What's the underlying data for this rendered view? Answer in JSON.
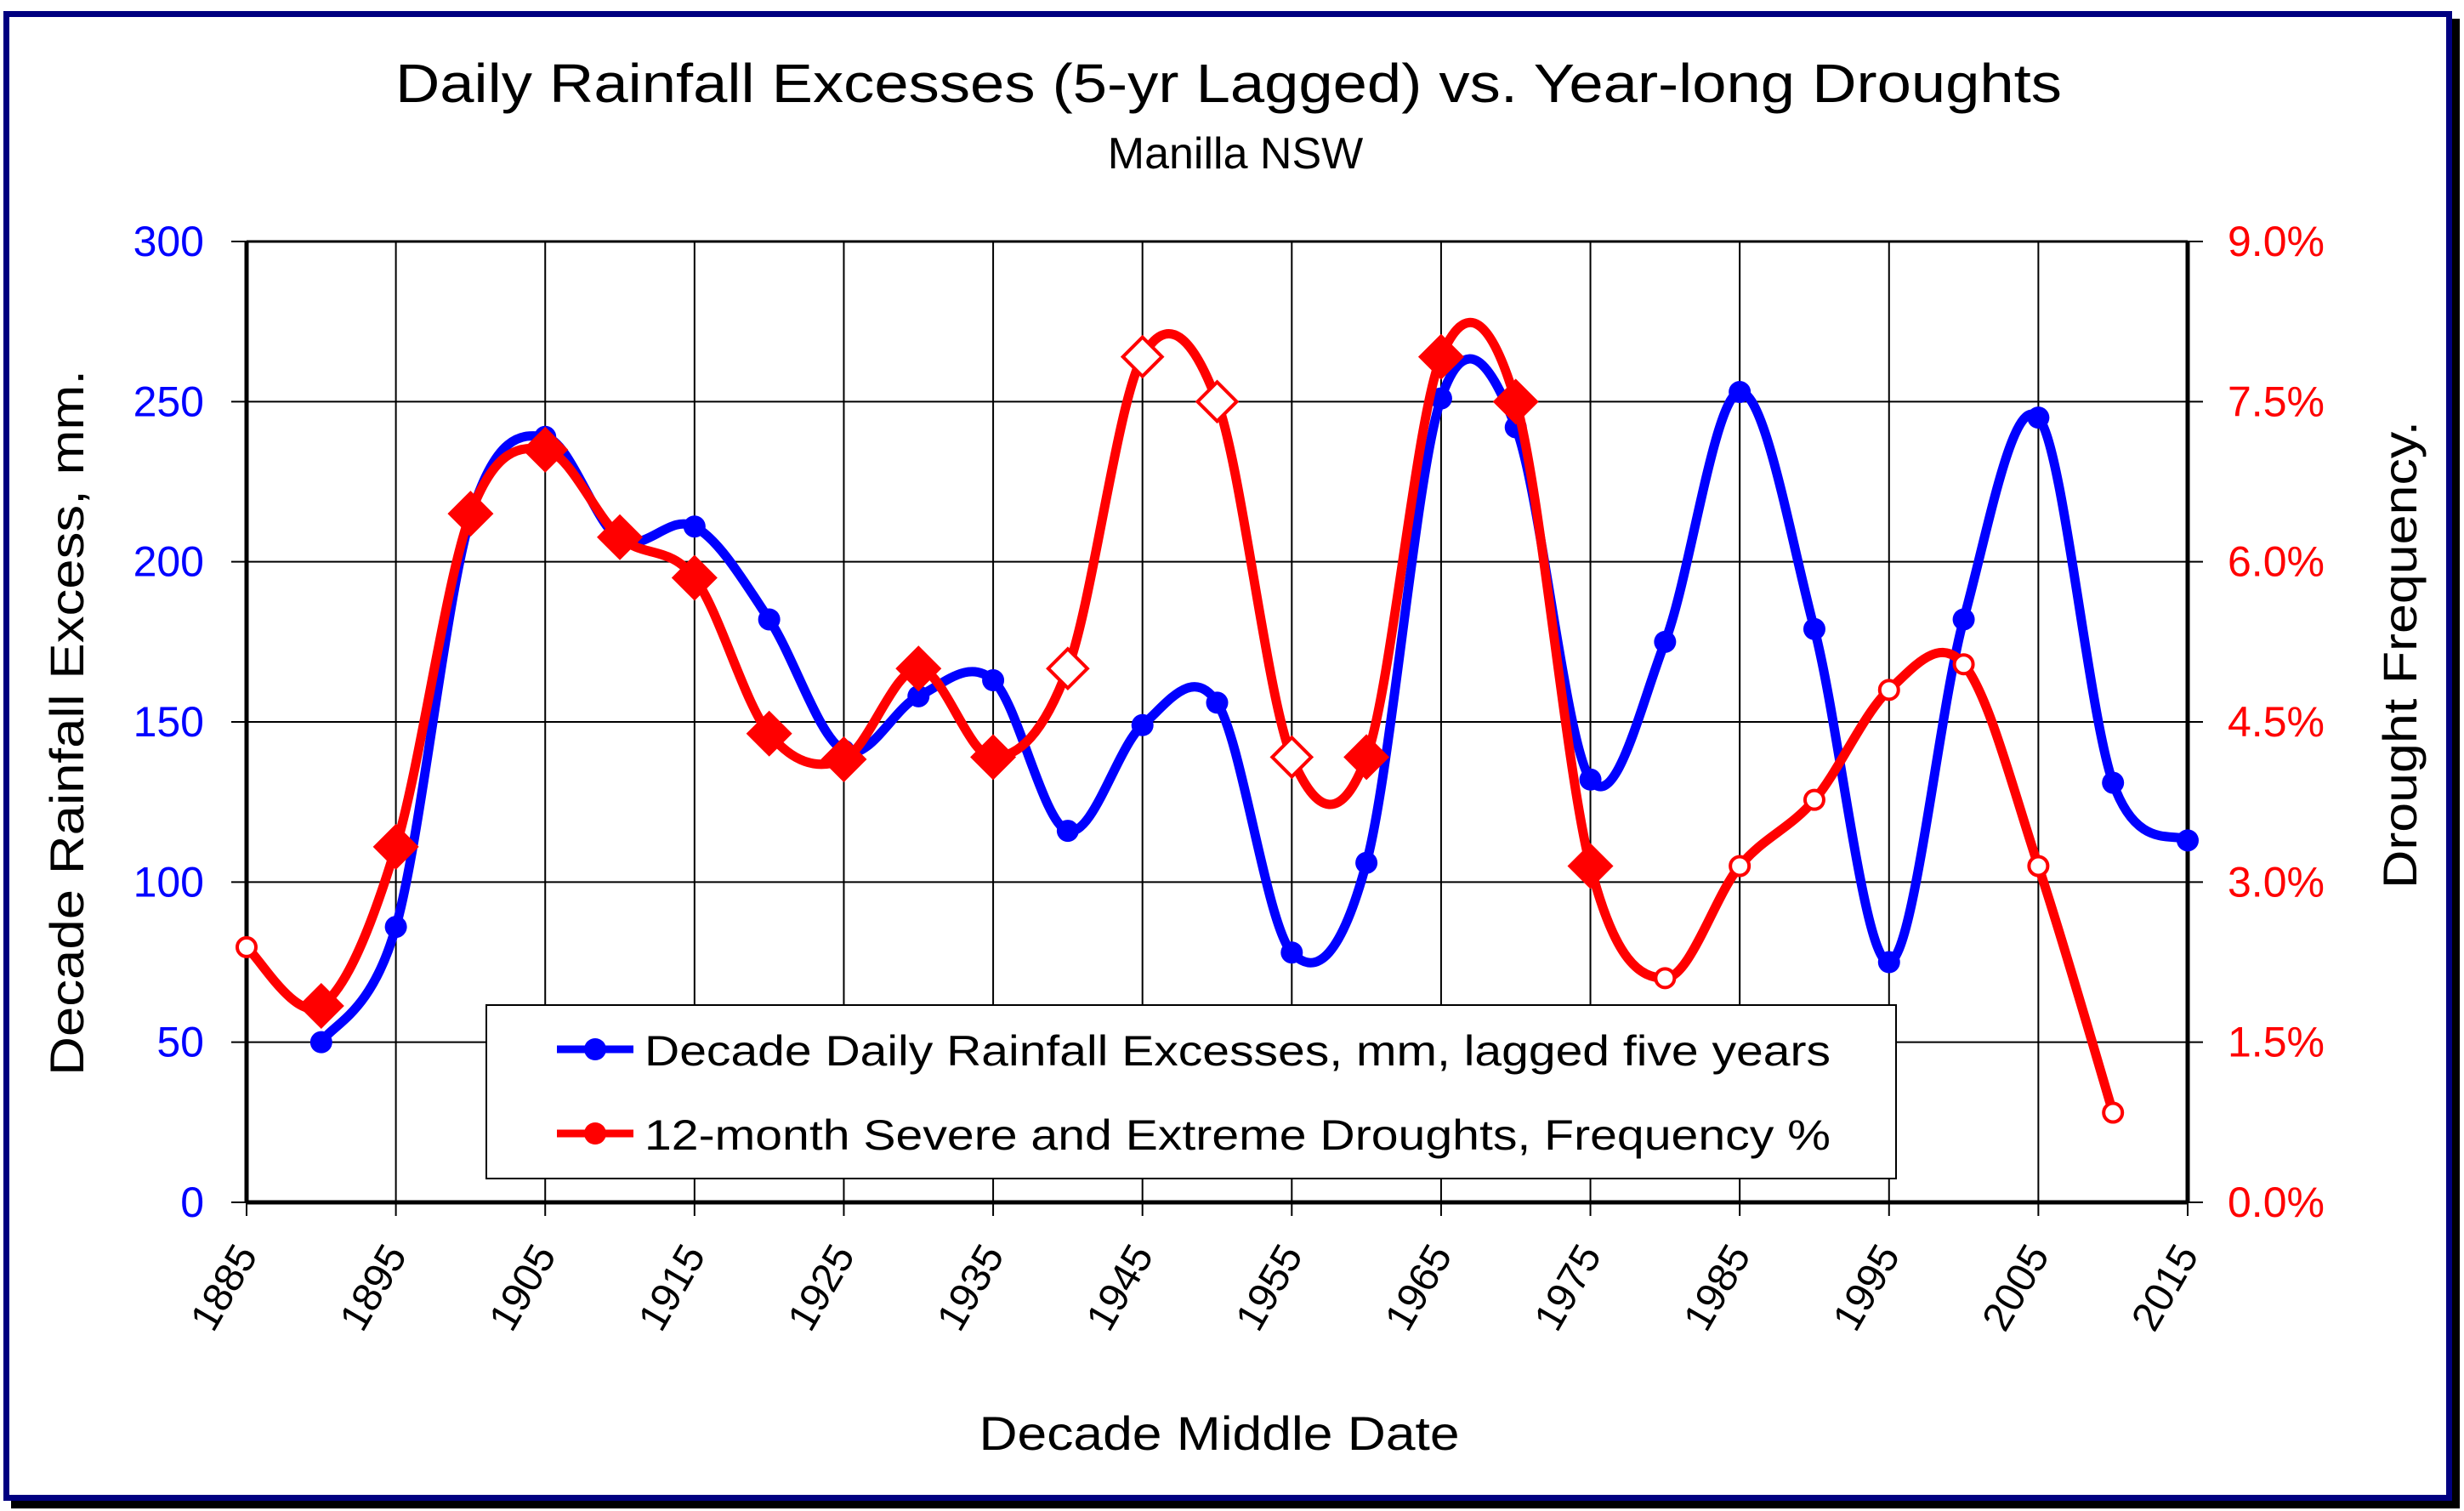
{
  "chart_data": {
    "type": "line",
    "title": "Daily Rainfall Excesses (5-yr Lagged) vs. Year-long Droughts",
    "subtitle": "Manilla NSW",
    "xlabel": "Decade Middle Date",
    "ylabel_left": "Decade Rainfall Excess, mm.",
    "ylabel_right": "Drought Frequency.",
    "xlim": [
      1885,
      2015
    ],
    "x_ticks": [
      "1885",
      "1895",
      "1905",
      "1915",
      "1925",
      "1935",
      "1945",
      "1955",
      "1965",
      "1975",
      "1985",
      "1995",
      "2005",
      "2015"
    ],
    "ylim_left": [
      0,
      300
    ],
    "y_ticks_left": [
      "0",
      "50",
      "100",
      "150",
      "200",
      "250",
      "300"
    ],
    "ylim_right": [
      0,
      9.0
    ],
    "y_ticks_right": [
      "0.0%",
      "1.5%",
      "3.0%",
      "4.5%",
      "6.0%",
      "7.5%",
      "9.0%"
    ],
    "grid": true,
    "legend_position": "bottom-center",
    "series": [
      {
        "name": "Decade Daily Rainfall Excesses, mm, lagged five years",
        "axis": "left",
        "color": "#0000ff",
        "marker": "circle",
        "smooth": true,
        "x": [
          1890,
          1895,
          1900,
          1905,
          1910,
          1915,
          1920,
          1925,
          1930,
          1935,
          1940,
          1945,
          1950,
          1955,
          1960,
          1965,
          1970,
          1975,
          1980,
          1985,
          1990,
          1995,
          2000,
          2005,
          2010,
          2015
        ],
        "values": [
          50,
          86,
          214,
          239,
          207,
          211,
          182,
          141,
          158,
          163,
          116,
          149,
          156,
          78,
          106,
          251,
          242,
          132,
          175,
          253,
          179,
          75,
          182,
          245,
          131,
          113
        ],
        "marker_shown": [
          true,
          true,
          false,
          true,
          false,
          true,
          true,
          true,
          true,
          true,
          true,
          true,
          true,
          true,
          true,
          true,
          true,
          true,
          true,
          true,
          true,
          true,
          true,
          true,
          true,
          true
        ]
      },
      {
        "name": "12-month Severe and Extreme Droughts, Frequency %",
        "axis": "right",
        "color": "#ff0000",
        "smooth": true,
        "x": [
          1885,
          1890,
          1895,
          1900,
          1905,
          1910,
          1915,
          1920,
          1925,
          1930,
          1935,
          1940,
          1945,
          1950,
          1955,
          1960,
          1965,
          1970,
          1975,
          1980,
          1985,
          1990,
          1995,
          2000,
          2005,
          2010
        ],
        "values": [
          2.39,
          1.84,
          3.33,
          6.45,
          7.05,
          6.23,
          5.85,
          4.39,
          4.15,
          5.0,
          4.17,
          5.0,
          7.92,
          7.5,
          4.17,
          4.17,
          7.92,
          7.5,
          3.15,
          2.1,
          3.15,
          3.77,
          4.8,
          5.04,
          3.15,
          0.84
        ],
        "markers": [
          "open-circle",
          "filled-diamond",
          "filled-diamond",
          "filled-diamond",
          "filled-diamond",
          "filled-diamond",
          "filled-diamond",
          "filled-diamond",
          "filled-diamond",
          "filled-diamond",
          "filled-diamond",
          "open-diamond",
          "open-diamond",
          "open-diamond",
          "open-diamond",
          "filled-diamond",
          "filled-diamond",
          "filled-diamond",
          "filled-diamond",
          "open-circle",
          "open-circle",
          "open-circle",
          "open-circle",
          "open-circle",
          "open-circle",
          "open-circle"
        ]
      }
    ]
  },
  "colors": {
    "frame": "#000080",
    "left_axis": "#0000ff",
    "right_axis": "#ff0000"
  }
}
